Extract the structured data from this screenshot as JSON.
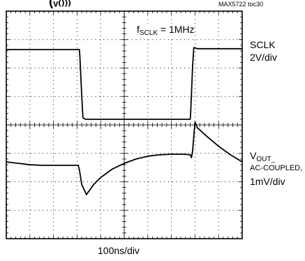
{
  "header": {
    "cut_title": "(ᵥ₍₎₎₎",
    "part_id": "MAX5722 toc30"
  },
  "annotations": {
    "freq_prefix": "f",
    "freq_sub": "SCLK",
    "freq_value": " = 1MHz"
  },
  "channels": {
    "sclk_name": "SCLK",
    "sclk_scale": "2V/div",
    "vout_prefix": "V",
    "vout_sub": "OUT_",
    "vout_coupling": "AC-COUPLED,",
    "vout_scale": "1mV/div"
  },
  "time_scale": "100ns/div",
  "chart_data": {
    "type": "line",
    "grid": true,
    "x_divisions": 10,
    "y_divisions": 8,
    "xlim": [
      0,
      10
    ],
    "ylim": [
      0,
      8
    ],
    "series": [
      {
        "x": [
          0,
          3.1,
          3.12,
          3.2,
          3.25,
          3.35,
          7.8,
          7.82,
          7.9,
          7.95,
          8.1,
          10
        ],
        "y": [
          6.65,
          6.65,
          6.4,
          5.0,
          4.25,
          4.2,
          4.2,
          4.5,
          6.1,
          6.72,
          6.68,
          6.68
        ]
      },
      {
        "x": [
          0,
          0.5,
          1.0,
          1.5,
          2.0,
          2.5,
          3.05,
          3.1,
          3.2,
          3.4,
          3.7,
          4.0,
          4.5,
          5.0,
          5.5,
          6.0,
          6.5,
          7.0,
          7.5,
          7.8,
          7.85,
          7.9,
          8.0,
          8.1,
          8.5,
          9.0,
          9.5,
          10
        ],
        "y": [
          2.7,
          2.65,
          2.6,
          2.58,
          2.58,
          2.58,
          2.58,
          2.42,
          1.9,
          1.55,
          1.9,
          2.15,
          2.45,
          2.65,
          2.8,
          2.9,
          2.95,
          2.97,
          2.97,
          2.95,
          2.85,
          3.1,
          4.1,
          3.9,
          3.6,
          3.25,
          2.95,
          2.7
        ]
      }
    ]
  }
}
